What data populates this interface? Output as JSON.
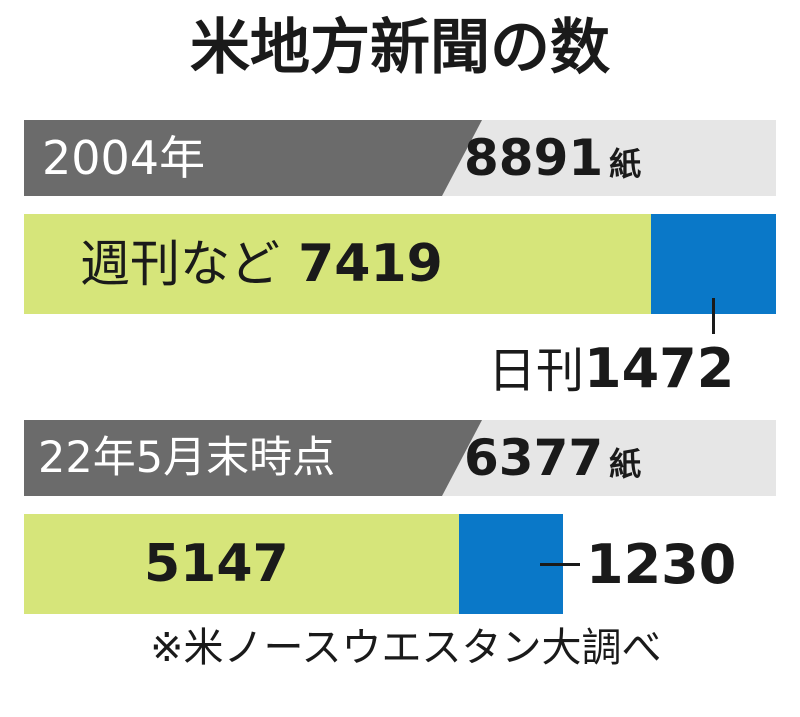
{
  "title": "米地方新聞の数",
  "unit": "紙",
  "footnote": "※米ノースウエスタン大調べ",
  "colors": {
    "header_bg": "#6b6b6b",
    "header_light": "#e6e6e6",
    "weekly": "#d6e57a",
    "daily": "#0a78c8"
  },
  "groups": [
    {
      "label": "2004年",
      "total": "8891",
      "weekly_label": "週刊など",
      "weekly": "7419",
      "daily_label": "日刊",
      "daily": "1472"
    },
    {
      "label": "22年5月末時点",
      "total": "6377",
      "weekly": "5147",
      "daily": "1230"
    }
  ],
  "chart_data": {
    "type": "bar",
    "stacked": true,
    "orientation": "horizontal",
    "title": "米地方新聞の数",
    "categories": [
      "2004年",
      "22年5月末時点"
    ],
    "totals": [
      8891,
      6377
    ],
    "series": [
      {
        "name": "週刊など",
        "values": [
          7419,
          5147
        ]
      },
      {
        "name": "日刊",
        "values": [
          1472,
          1230
        ]
      }
    ],
    "unit": "紙",
    "legend": "none"
  }
}
